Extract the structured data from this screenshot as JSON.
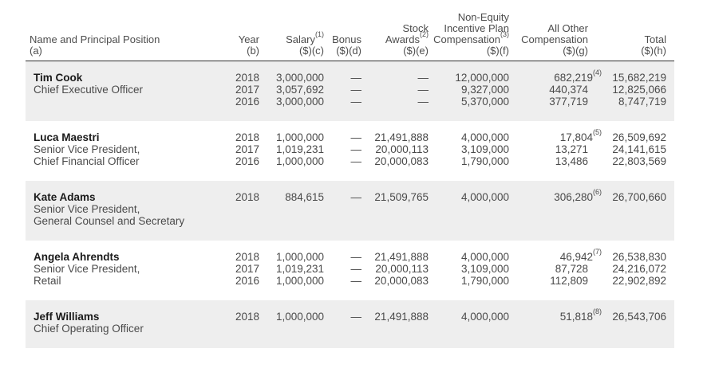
{
  "colors": {
    "band_shaded": "#eeeeee",
    "rule": "#2e2e2e",
    "text": "#4a4a4a",
    "name_text": "#1a1a1a"
  },
  "table": {
    "header": {
      "name": {
        "l1": "Name and Principal Position",
        "l2": "(a)"
      },
      "year": {
        "l1": "Year",
        "l2": "(b)"
      },
      "salary": {
        "l1": "Salary",
        "sup": "(1)",
        "l2": "($)(c)"
      },
      "bonus": {
        "l1": "Bonus",
        "l2": "($)(d)"
      },
      "stock": {
        "l1a": "Stock",
        "l1b": "Awards",
        "sup": "(2)",
        "l2": "($)(e)"
      },
      "neip": {
        "l1a": "Non-Equity",
        "l1b": "Incentive Plan",
        "l1c": "Compensation",
        "sup": "(3)",
        "l2": "($)(f)"
      },
      "aoc": {
        "l1a": "All Other",
        "l1b": "Compensation",
        "l2": "($)(g)"
      },
      "total": {
        "l1": "Total",
        "l2": "($)(h)"
      }
    },
    "executives": [
      {
        "name": "Tim Cook",
        "title1": "Chief Executive Officer",
        "rows": [
          {
            "year": "2018",
            "salary": "3,000,000",
            "bonus": "—",
            "stock": "—",
            "neip": "12,000,000",
            "aoc": "682,219",
            "aoc_fn": "(4)",
            "total": "15,682,219"
          },
          {
            "year": "2017",
            "salary": "3,057,692",
            "bonus": "—",
            "stock": "—",
            "neip": "9,327,000",
            "aoc": "440,374",
            "total": "12,825,066"
          },
          {
            "year": "2016",
            "salary": "3,000,000",
            "bonus": "—",
            "stock": "—",
            "neip": "5,370,000",
            "aoc": "377,719",
            "total": "8,747,719"
          }
        ]
      },
      {
        "name": "Luca Maestri",
        "title1": "Senior Vice President,",
        "title2": "Chief Financial Officer",
        "rows": [
          {
            "year": "2018",
            "salary": "1,000,000",
            "bonus": "—",
            "stock": "21,491,888",
            "neip": "4,000,000",
            "aoc": "17,804",
            "aoc_fn": "(5)",
            "total": "26,509,692"
          },
          {
            "year": "2017",
            "salary": "1,019,231",
            "bonus": "—",
            "stock": "20,000,113",
            "neip": "3,109,000",
            "aoc": "13,271",
            "total": "24,141,615"
          },
          {
            "year": "2016",
            "salary": "1,000,000",
            "bonus": "—",
            "stock": "20,000,083",
            "neip": "1,790,000",
            "aoc": "13,486",
            "total": "22,803,569"
          }
        ]
      },
      {
        "name": "Kate Adams",
        "title1": "Senior Vice President,",
        "title2": "General Counsel and Secretary",
        "rows": [
          {
            "year": "2018",
            "salary": "884,615",
            "bonus": "—",
            "stock": "21,509,765",
            "neip": "4,000,000",
            "aoc": "306,280",
            "aoc_fn": "(6)",
            "total": "26,700,660"
          }
        ]
      },
      {
        "name": "Angela Ahrendts",
        "title1": "Senior Vice President,",
        "title2": "Retail",
        "rows": [
          {
            "year": "2018",
            "salary": "1,000,000",
            "bonus": "—",
            "stock": "21,491,888",
            "neip": "4,000,000",
            "aoc": "46,942",
            "aoc_fn": "(7)",
            "total": "26,538,830"
          },
          {
            "year": "2017",
            "salary": "1,019,231",
            "bonus": "—",
            "stock": "20,000,113",
            "neip": "3,109,000",
            "aoc": "87,728",
            "total": "24,216,072"
          },
          {
            "year": "2016",
            "salary": "1,000,000",
            "bonus": "—",
            "stock": "20,000,083",
            "neip": "1,790,000",
            "aoc": "112,809",
            "total": "22,902,892"
          }
        ]
      },
      {
        "name": "Jeff Williams",
        "title1": "Chief Operating Officer",
        "rows": [
          {
            "year": "2018",
            "salary": "1,000,000",
            "bonus": "—",
            "stock": "21,491,888",
            "neip": "4,000,000",
            "aoc": "51,818",
            "aoc_fn": "(8)",
            "total": "26,543,706"
          }
        ]
      }
    ]
  }
}
